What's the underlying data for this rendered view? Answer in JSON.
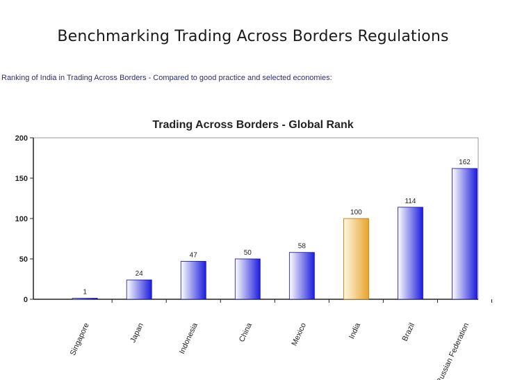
{
  "slide": {
    "title": "Benchmarking Trading Across Borders Regulations",
    "subtitle": "Ranking of India in Trading Across Borders - Compared to good practice and selected economies:"
  },
  "colors": {
    "bar_default_dark": "#1c1ce0",
    "bar_default_light": "#ffffff",
    "bar_highlight_dark": "#e8a42c",
    "bar_highlight_light": "#fff8e4",
    "axis": "#222222",
    "grid_frame": "#999999"
  },
  "chart_data": {
    "type": "bar",
    "title": "Trading Across Borders - Global Rank",
    "categories": [
      "Singapore",
      "Japan",
      "Indonesia",
      "China",
      "Mexico",
      "India",
      "Brazil",
      "Russian Federation"
    ],
    "values": [
      1,
      24,
      47,
      50,
      58,
      100,
      114,
      162
    ],
    "data_labels": [
      "1",
      "24",
      "47",
      "50",
      "58",
      "100",
      "114",
      "162"
    ],
    "highlight": "India",
    "ylim": [
      0,
      200
    ],
    "yticks": [
      "0",
      "50",
      "100",
      "150",
      "200"
    ],
    "xlabel": "",
    "ylabel": "",
    "grid": false,
    "legend": "none"
  }
}
